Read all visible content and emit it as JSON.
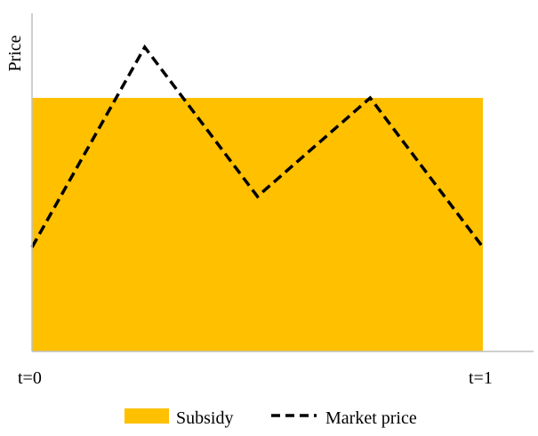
{
  "chart_data": {
    "type": "line",
    "ylabel": "Price",
    "x_tick_labels": [
      "t=0",
      "t=1"
    ],
    "series": [
      {
        "name": "Subsidy",
        "kind": "area",
        "color": "#FFC000",
        "x": [
          0,
          1
        ],
        "values": [
          0.9,
          0.9
        ]
      },
      {
        "name": "Market price",
        "kind": "line",
        "style": "dashed",
        "color": "#000000",
        "x": [
          0,
          0.25,
          0.5,
          0.75,
          1
        ],
        "values": [
          0.37,
          1.08,
          0.55,
          0.9,
          0.37
        ]
      }
    ],
    "xlim": [
      0,
      1
    ],
    "ylim": [
      0,
      1.2
    ],
    "grid": false,
    "legend_position": "bottom"
  }
}
